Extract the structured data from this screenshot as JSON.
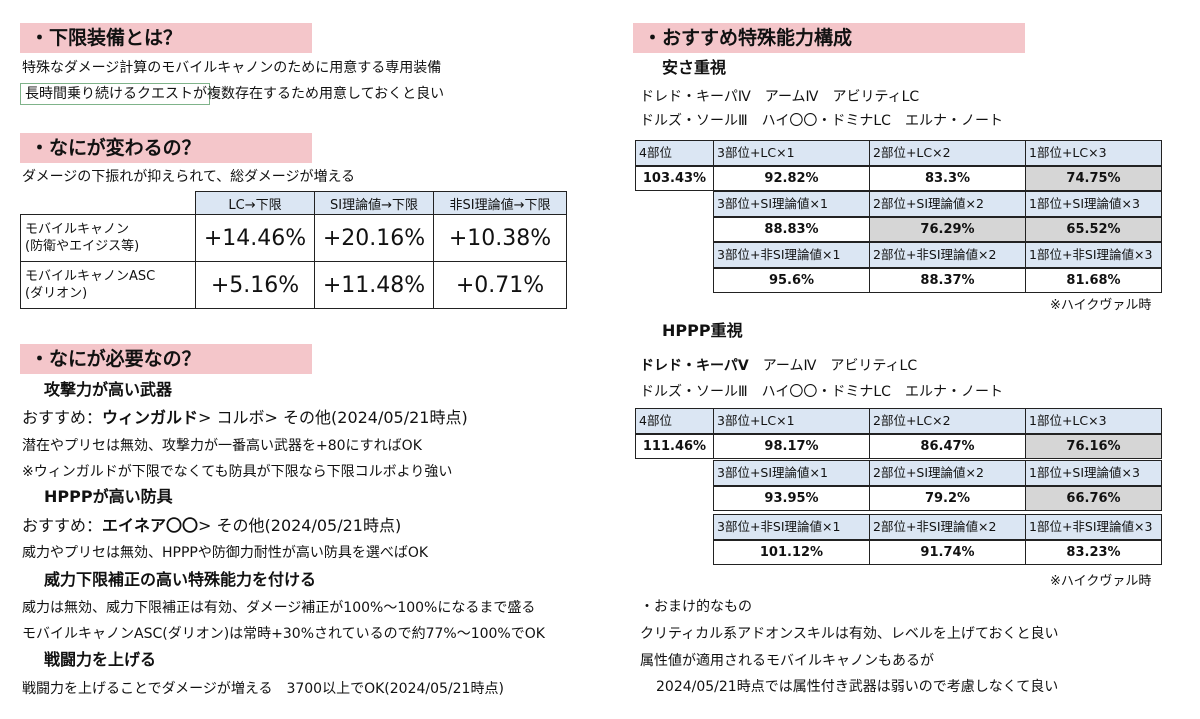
{
  "left": {
    "sec1": {
      "title": "・下限装備とは？",
      "line1": "特殊なダメージ計算のモバイルキャノンのために用意する専用装備",
      "line2": "長時間乗り続けるクエストが複数存在するため用意しておくと良い"
    },
    "sec2": {
      "title": "・なにが変わるの？",
      "line1": "ダメージの下振れが抑えられて、総ダメージが増える",
      "table": {
        "headers": [
          "LC→下限",
          "SI理論値→下限",
          "非SI理論値→下限"
        ],
        "rows": [
          {
            "label1": "モバイルキャノン",
            "label2": "(防衛やエイジス等)",
            "values": [
              "+14.46%",
              "+20.16%",
              "+10.38%"
            ]
          },
          {
            "label1": "モバイルキャノンASC",
            "label2": "(ダリオン)",
            "values": [
              "+5.16%",
              "+11.48%",
              "+0.71%"
            ]
          }
        ]
      }
    },
    "sec3": {
      "title": "・なにが必要なの？",
      "weapon_head": "攻撃力が高い武器",
      "weapon_rec_pre": "おすすめ：",
      "weapon_rec_bold": "ウィンガルド",
      "weapon_rec_post": "> コルボ> その他(2024/05/21時点)",
      "weapon_note1": "潜在やプリセは無効、攻撃力が一番高い武器を+80にすればOK",
      "weapon_note2": "※ウィンガルドが下限でなくても防具が下限なら下限コルボより強い",
      "armor_head": "HPPPが高い防具",
      "armor_rec_pre": "おすすめ：",
      "armor_rec_bold": "エイネア〇〇",
      "armor_rec_post": "> その他(2024/05/21時点)",
      "armor_note": "威力やプリセは無効、HPPPや防御力耐性が高い防具を選べばOK",
      "ability_head": "威力下限補正の高い特殊能力を付ける",
      "ability_note1": "威力は無効、威力下限補正は有効、ダメージ補正が100%～100%になるまで盛る",
      "ability_note2": "モバイルキャノンASC(ダリオン)は常時+30%されているので約77%～100%でOK",
      "power_head": "戦闘力を上げる",
      "power_note": "戦闘力を上げることでダメージが増える　3700以上でOK(2024/05/21時点)"
    }
  },
  "right": {
    "title": "・おすすめ特殊能力構成",
    "cheap": {
      "head": "安さ重視",
      "line1": "ドレド・キーパⅣ　アームⅣ　アビリティLC",
      "line2": "ドルズ・ソールⅢ　ハイ〇〇・ドミナLC　エルナ・ノート",
      "c4": "4部位",
      "v4": "103.43%",
      "r1": [
        "3部位+LC×1",
        "2部位+LC×2",
        "1部位+LC×3"
      ],
      "v1": [
        "92.82%",
        "83.3%",
        "74.75%"
      ],
      "r2": [
        "3部位+SI理論値×1",
        "2部位+SI理論値×2",
        "1部位+SI理論値×3"
      ],
      "v2": [
        "88.83%",
        "76.29%",
        "65.52%"
      ],
      "r3": [
        "3部位+非SI理論値×1",
        "2部位+非SI理論値×2",
        "1部位+非SI理論値×3"
      ],
      "v3": [
        "95.6%",
        "88.37%",
        "81.68%"
      ],
      "note": "※ハイクヴァル時"
    },
    "hppp": {
      "head": "HPPP重視",
      "line1_bold": "ドレド・キーパⅤ",
      "line1_rest": "　アームⅣ　アビリティLC",
      "line2": "ドルズ・ソールⅢ　ハイ〇〇・ドミナLC　エルナ・ノート",
      "c4": "4部位",
      "v4": "111.46%",
      "r1": [
        "3部位+LC×1",
        "2部位+LC×2",
        "1部位+LC×3"
      ],
      "v1": [
        "98.17%",
        "86.47%",
        "76.16%"
      ],
      "r2": [
        "3部位+SI理論値×1",
        "2部位+SI理論値×2",
        "1部位+SI理論値×3"
      ],
      "v2": [
        "93.95%",
        "79.2%",
        "66.76%"
      ],
      "r3": [
        "3部位+非SI理論値×1",
        "2部位+非SI理論値×2",
        "1部位+非SI理論値×3"
      ],
      "v3": [
        "101.12%",
        "91.74%",
        "83.23%"
      ],
      "note": "※ハイクヴァル時"
    },
    "extra": {
      "head": "・おまけ的なもの",
      "line1": "クリティカル系アドオンスキルは有効、レベルを上げておくと良い",
      "line2": "属性値が適用されるモバイルキャノンもあるが",
      "line3": "2024/05/21時点では属性付き武器は弱いので考慮しなくて良い"
    }
  },
  "colors": {
    "header_bg": "#f4c6ca",
    "label_bg": "#dbe6f3",
    "gray_cell": "#d6d6d6"
  }
}
